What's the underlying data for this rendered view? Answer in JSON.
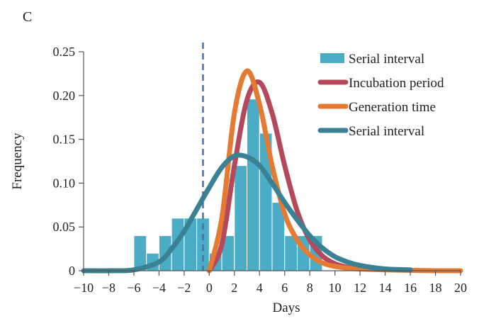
{
  "chart_data": {
    "type": "bar",
    "panel_label": "C",
    "title": "",
    "xlabel": "Days",
    "ylabel": "Frequency",
    "xlim": [
      -10,
      20
    ],
    "ylim": [
      0,
      0.25
    ],
    "x_ticks": [
      "−10",
      "−8",
      "−6",
      "−4",
      "−2",
      "0",
      "2",
      "4",
      "6",
      "8",
      "10",
      "12",
      "14",
      "16",
      "18",
      "20"
    ],
    "x_tick_values": [
      -10,
      -8,
      -6,
      -4,
      -2,
      0,
      2,
      4,
      6,
      8,
      10,
      12,
      14,
      16,
      18,
      20
    ],
    "y_ticks": [
      "0",
      "0.05",
      "0.10",
      "0.15",
      "0.20",
      "0.25"
    ],
    "y_tick_values": [
      0,
      0.05,
      0.1,
      0.15,
      0.2,
      0.25
    ],
    "grid": false,
    "legend_position": "top-right",
    "reference_line": {
      "x": -0.5,
      "style": "dashed",
      "color": "#4a6fa5"
    },
    "histogram": {
      "name": "Serial interval",
      "color": "#4bacc6",
      "bin_width": 1,
      "bins": [
        {
          "x0": -6,
          "value": 0.04
        },
        {
          "x0": -5,
          "value": 0.02
        },
        {
          "x0": -4,
          "value": 0.04
        },
        {
          "x0": -3,
          "value": 0.06
        },
        {
          "x0": -2,
          "value": 0.06
        },
        {
          "x0": -1,
          "value": 0.06
        },
        {
          "x0": 0,
          "value": 0.02
        },
        {
          "x0": 1,
          "value": 0.04
        },
        {
          "x0": 2,
          "value": 0.12
        },
        {
          "x0": 3,
          "value": 0.196
        },
        {
          "x0": 4,
          "value": 0.157
        },
        {
          "x0": 5,
          "value": 0.078
        },
        {
          "x0": 6,
          "value": 0.04
        },
        {
          "x0": 7,
          "value": 0.04
        },
        {
          "x0": 8,
          "value": 0.04
        }
      ]
    },
    "curves": [
      {
        "name": "Incubation period",
        "color": "#b5495b",
        "x": [
          0,
          1,
          2,
          3,
          4,
          5,
          6,
          7,
          8,
          9,
          10,
          11,
          12
        ],
        "y": [
          0,
          0.03,
          0.12,
          0.195,
          0.215,
          0.18,
          0.12,
          0.068,
          0.035,
          0.017,
          0.008,
          0.004,
          0.002
        ]
      },
      {
        "name": "Generation time",
        "color": "#e57a33",
        "x": [
          0,
          1,
          2,
          3,
          4,
          5,
          6,
          7,
          8,
          9,
          10,
          11,
          12,
          14,
          16,
          18,
          20
        ],
        "y": [
          0,
          0.06,
          0.18,
          0.228,
          0.19,
          0.12,
          0.065,
          0.035,
          0.018,
          0.009,
          0.005,
          0.003,
          0.002,
          0.001,
          0.0005,
          0,
          0
        ]
      },
      {
        "name": "Serial interval",
        "color": "#3a8293",
        "x": [
          -10,
          -8,
          -6,
          -4,
          -3,
          -2,
          -1,
          0,
          1,
          2,
          3,
          4,
          5,
          6,
          7,
          8,
          9,
          10,
          11,
          12,
          14,
          16
        ],
        "y": [
          0,
          0,
          0.001,
          0.01,
          0.025,
          0.045,
          0.07,
          0.095,
          0.118,
          0.131,
          0.13,
          0.12,
          0.1,
          0.078,
          0.058,
          0.04,
          0.026,
          0.016,
          0.01,
          0.006,
          0.002,
          0.001
        ]
      }
    ],
    "legend": [
      {
        "label": "Serial interval",
        "kind": "box",
        "color": "#4bacc6"
      },
      {
        "label": "Incubation period",
        "kind": "line",
        "color": "#b5495b"
      },
      {
        "label": "Generation time",
        "kind": "line",
        "color": "#e57a33"
      },
      {
        "label": "Serial interval",
        "kind": "line",
        "color": "#3a8293"
      }
    ]
  }
}
